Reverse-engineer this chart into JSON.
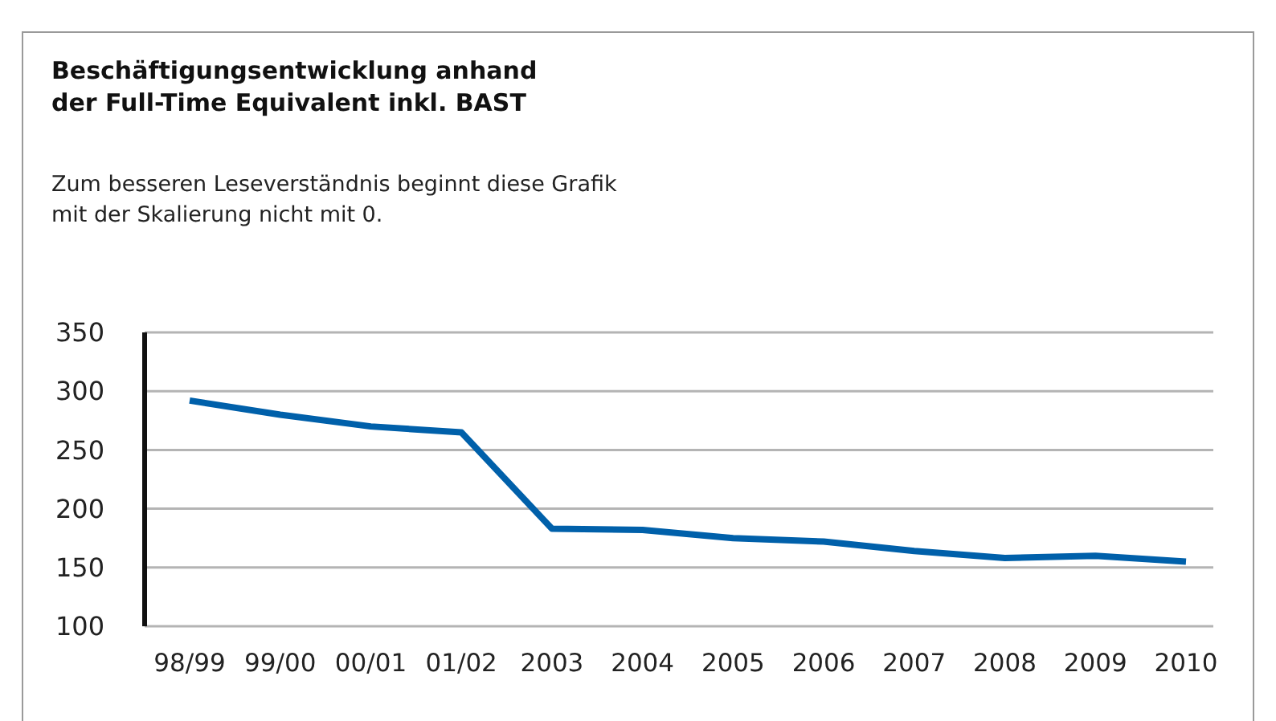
{
  "chart_data": {
    "type": "line",
    "title": "Beschäftigungsentwicklung anhand\nder Full-Time Equivalent inkl. BAST",
    "subtitle": "Zum besseren Leseverständnis beginnt diese Grafik\nmit der Skalierung nicht mit 0.",
    "categories": [
      "98/99",
      "99/00",
      "00/01",
      "01/02",
      "2003",
      "2004",
      "2005",
      "2006",
      "2007",
      "2008",
      "2009",
      "2010"
    ],
    "series": [
      {
        "color": "#0060aa",
        "values": [
          292,
          280,
          270,
          265,
          183,
          182,
          175,
          172,
          164,
          158,
          160,
          155
        ]
      }
    ],
    "ylim": [
      100,
      350
    ],
    "yticks": [
      100,
      150,
      200,
      250,
      300,
      350
    ],
    "grid": "y",
    "marker": "none",
    "line_style": "solid"
  }
}
